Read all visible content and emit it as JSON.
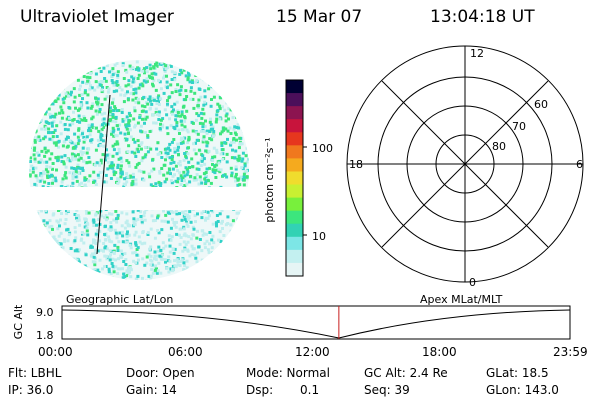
{
  "header": {
    "instrument": "Ultraviolet Imager",
    "date": "15 Mar 07",
    "time": "13:04:18 UT"
  },
  "colorbar": {
    "unit_label": "photon cm⁻²s⁻¹",
    "tick_labels": [
      "100",
      "10"
    ],
    "colors": [
      "#000033",
      "#4b0f5a",
      "#8c1450",
      "#c8143c",
      "#e6371e",
      "#f0781e",
      "#f5aa1e",
      "#f0dc2d",
      "#c8f032",
      "#78f03c",
      "#3ce67d",
      "#32d2b4",
      "#7de6e6",
      "#c3f0f0",
      "#e6f5f5"
    ]
  },
  "polar_plot": {
    "mlt_labels": {
      "top": "12",
      "left": "18",
      "right": "6",
      "bottom": "0"
    },
    "lat_labels": [
      "60",
      "70",
      "80"
    ]
  },
  "timeline": {
    "y_axis_label": "GC Alt",
    "y_ticks": [
      "9.0",
      "1.8"
    ],
    "left_label": "Geographic Lat/Lon",
    "right_label": "Apex MLat/MLT",
    "time_ticks": [
      "00:00",
      "06:00",
      "12:00",
      "18:00",
      "23:59"
    ],
    "current_time_fraction": 0.545
  },
  "status": {
    "filter": "Flt: LBHL",
    "ip": "IP: 36.0",
    "door": "Door: Open",
    "gain": "Gain: 14",
    "mode": "Mode: Normal",
    "dsp_label": "Dsp:",
    "dsp_value": "0.1",
    "gc_alt": "GC Alt: 2.4 Re",
    "seq": "Seq: 39",
    "glat": "GLat: 18.5",
    "glon": "GLon: 143.0"
  },
  "colors": {
    "speckle_green": "#3ce67d",
    "speckle_cyan": "#32d2c8",
    "speckle_light": "#bfeeee",
    "marker_red": "#c81e1e"
  }
}
